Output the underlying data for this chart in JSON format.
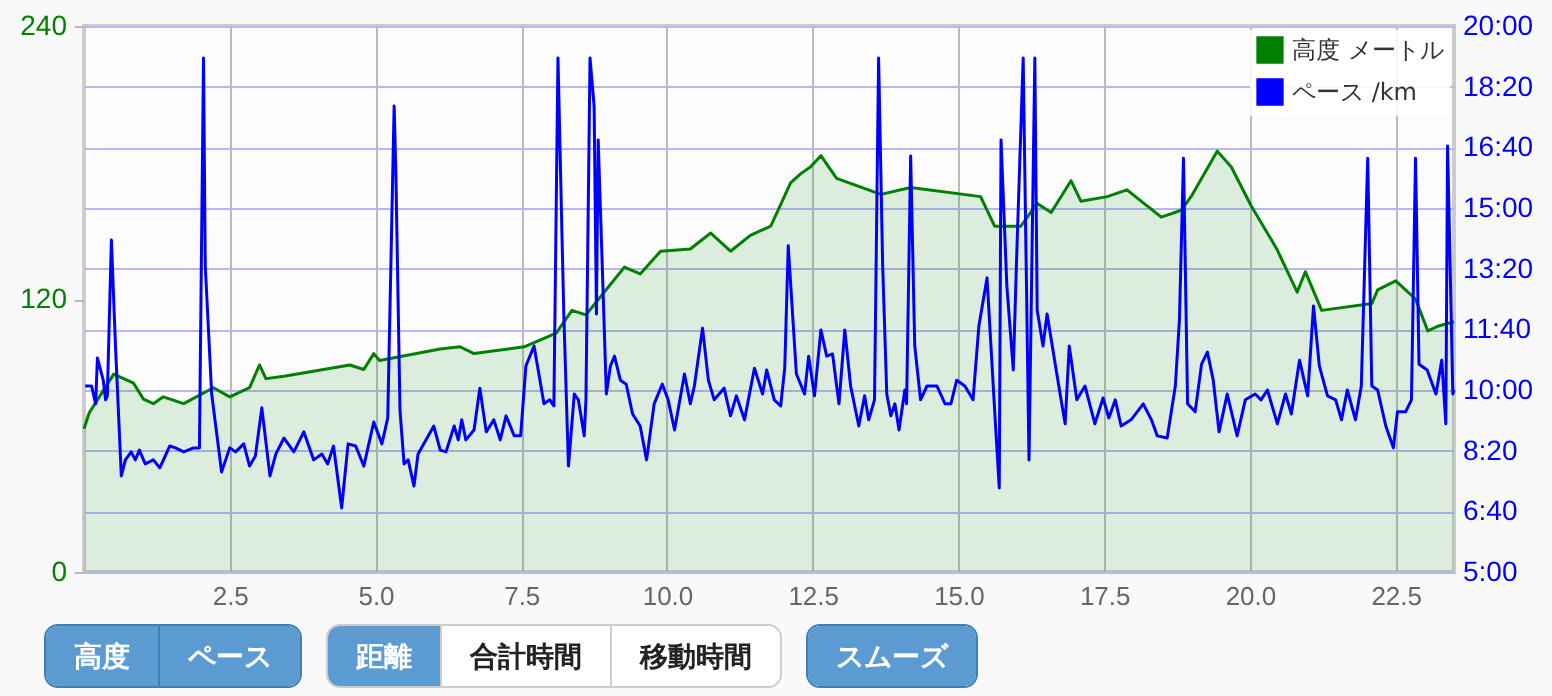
{
  "chart_data": {
    "type": "area",
    "xlim": [
      0,
      23.5
    ],
    "xticks": [
      2.5,
      {
        "value": 5,
        "label": "5.0"
      },
      7.5,
      {
        "value": 10,
        "label": "10.0"
      },
      12.5,
      {
        "value": 15,
        "label": "15.0"
      },
      17.5,
      {
        "value": 20,
        "label": "20.0"
      },
      22.5
    ],
    "ylim": [
      0,
      240
    ],
    "yticks": [
      0,
      120,
      240
    ],
    "y2lim": [
      5,
      20
    ],
    "y2ticks": [
      {
        "value": 5,
        "label": "5:00"
      },
      {
        "value": 6.667,
        "label": "6:40"
      },
      {
        "value": 8.333,
        "label": "8:20"
      },
      {
        "value": 10,
        "label": "10:00"
      },
      {
        "value": 11.667,
        "label": "11:40"
      },
      {
        "value": 13.333,
        "label": "13:20"
      },
      {
        "value": 15,
        "label": "15:00"
      },
      {
        "value": 16.667,
        "label": "16:40"
      },
      {
        "value": 18.333,
        "label": "18:20"
      },
      {
        "value": 20,
        "label": "20:00"
      }
    ],
    "grid": true,
    "legend": "top right",
    "annotations": [
      "高度",
      "ペース",
      "距離",
      "合計時間",
      "移動時間",
      "スムーズ"
    ],
    "series": [
      {
        "name": "高度 メートル",
        "color": "#008000",
        "x": [
          0,
          0.09,
          0.51,
          0.85,
          1.02,
          1.19,
          1.36,
          1.71,
          2.22,
          2.5,
          2.84,
          3.01,
          3.12,
          3.43,
          4.56,
          4.8,
          4.97,
          5.07,
          6.11,
          6.45,
          6.69,
          7.55,
          8.1,
          8.37,
          8.61,
          8.86,
          9.27,
          9.54,
          9.89,
          10.4,
          10.75,
          11.09,
          11.43,
          11.78,
          12.12,
          12.29,
          12.46,
          12.64,
          12.91,
          13.67,
          14.18,
          15.38,
          15.62,
          16.07,
          16.35,
          16.59,
          16.93,
          17.1,
          17.55,
          17.89,
          18.48,
          18.82,
          18.99,
          19.44,
          19.68,
          20.02,
          20.46,
          20.81,
          20.95,
          21.23,
          22.09,
          22.19,
          22.5,
          22.84,
          23.05,
          23.22,
          23.5
        ],
        "values": [
          63,
          70,
          87,
          83,
          76,
          74,
          77,
          74,
          81,
          77,
          81,
          91,
          85,
          86,
          91,
          89,
          96,
          93,
          98,
          99,
          96,
          99,
          105,
          115,
          113,
          121,
          134,
          131,
          141,
          142,
          149,
          141,
          148,
          152,
          171,
          175,
          178,
          183,
          173,
          166,
          169,
          165,
          152,
          152,
          162,
          158,
          172,
          163,
          165,
          168,
          156,
          159,
          165,
          185,
          178,
          161,
          142,
          123,
          132,
          115,
          118,
          124,
          128,
          120,
          106,
          108,
          110
        ]
      },
      {
        "name": "ペース /km",
        "type": "line",
        "axis": "y2",
        "color": "#0000ff",
        "x": [
          0.02,
          0.13,
          0.2,
          0.23,
          0.33,
          0.37,
          0.4,
          0.47,
          0.54,
          0.64,
          0.71,
          0.81,
          0.88,
          0.95,
          1.05,
          1.19,
          1.3,
          1.47,
          1.57,
          1.71,
          1.88,
          1.98,
          2.05,
          2.08,
          2.19,
          2.36,
          2.5,
          2.6,
          2.74,
          2.84,
          2.94,
          3.05,
          3.19,
          3.29,
          3.43,
          3.6,
          3.77,
          3.94,
          4.08,
          4.18,
          4.28,
          4.42,
          4.53,
          4.66,
          4.8,
          4.97,
          5.11,
          5.21,
          5.32,
          5.35,
          5.42,
          5.49,
          5.56,
          5.66,
          5.73,
          6,
          6.11,
          6.21,
          6.35,
          6.42,
          6.48,
          6.55,
          6.69,
          6.79,
          6.9,
          7.03,
          7.14,
          7.24,
          7.38,
          7.49,
          7.58,
          7.72,
          7.89,
          7.99,
          8.06,
          8.13,
          8.23,
          8.31,
          8.41,
          8.48,
          8.58,
          8.61,
          8.68,
          8.75,
          8.79,
          8.82,
          8.89,
          8.96,
          9.03,
          9.1,
          9.2,
          9.3,
          9.41,
          9.54,
          9.65,
          9.78,
          9.92,
          10.02,
          10.13,
          10.3,
          10.4,
          10.47,
          10.61,
          10.71,
          10.81,
          10.98,
          11.09,
          11.19,
          11.33,
          11.5,
          11.64,
          11.71,
          11.84,
          11.95,
          12.02,
          12.08,
          12.22,
          12.36,
          12.43,
          12.53,
          12.64,
          12.74,
          12.84,
          12.95,
          13.05,
          13.15,
          13.29,
          13.39,
          13.46,
          13.56,
          13.63,
          13.7,
          13.77,
          13.84,
          13.91,
          13.98,
          14.08,
          14.11,
          14.18,
          14.25,
          14.35,
          14.46,
          14.63,
          14.77,
          14.87,
          14.97,
          15.11,
          15.25,
          15.35,
          15.49,
          15.63,
          15.7,
          15.73,
          15.83,
          15.94,
          16,
          16.11,
          16.21,
          16.31,
          16.35,
          16.45,
          16.52,
          16.66,
          16.76,
          16.83,
          16.9,
          17.03,
          17.17,
          17.34,
          17.48,
          17.58,
          17.69,
          17.79,
          17.96,
          18.17,
          18.31,
          18.41,
          18.58,
          18.72,
          18.79,
          18.86,
          18.93,
          19.06,
          19.17,
          19.27,
          19.37,
          19.47,
          19.61,
          19.78,
          19.92,
          20.09,
          20.19,
          20.3,
          20.47,
          20.61,
          20.71,
          20.85,
          20.99,
          21.09,
          21.19,
          21.33,
          21.47,
          21.57,
          21.67,
          21.81,
          21.91,
          22.02,
          22.09,
          22.19,
          22.33,
          22.46,
          22.53,
          22.67,
          22.77,
          22.84,
          22.9,
          23.04,
          23.19,
          23.29,
          23.36,
          23.39,
          23.48,
          23.5
        ],
        "values": [
          10.11,
          10.11,
          9.62,
          10.88,
          10.27,
          9.73,
          9.84,
          14.12,
          11.21,
          7.64,
          8.08,
          8.3,
          8.08,
          8.35,
          7.97,
          8.08,
          7.86,
          8.46,
          8.41,
          8.3,
          8.41,
          8.41,
          19.12,
          13.41,
          9.89,
          7.75,
          8.41,
          8.3,
          8.52,
          7.91,
          8.19,
          9.51,
          7.64,
          8.24,
          8.68,
          8.3,
          8.85,
          8.08,
          8.24,
          7.97,
          8.46,
          6.76,
          8.52,
          8.46,
          7.91,
          9.12,
          8.52,
          9.23,
          17.8,
          15.93,
          9.45,
          7.97,
          8.08,
          7.36,
          8.24,
          9.01,
          8.35,
          8.3,
          9.01,
          8.63,
          9.18,
          8.63,
          8.9,
          10.05,
          8.85,
          9.18,
          8.63,
          9.29,
          8.74,
          8.74,
          10.66,
          11.21,
          9.62,
          9.73,
          9.56,
          19.12,
          12.09,
          7.91,
          9.89,
          9.73,
          8.74,
          9.73,
          19.12,
          17.8,
          12.09,
          16.87,
          13.41,
          9.89,
          10.66,
          10.93,
          10.27,
          10.16,
          9.34,
          9.01,
          8.08,
          9.62,
          10.16,
          9.73,
          8.9,
          10.44,
          9.62,
          10.11,
          11.7,
          10.27,
          9.73,
          10.05,
          9.29,
          9.84,
          9.18,
          10.6,
          9.89,
          10.55,
          9.73,
          9.56,
          10.6,
          13.96,
          10.44,
          9.89,
          10.93,
          9.84,
          11.65,
          10.93,
          10.99,
          9.62,
          11.65,
          10.11,
          9.01,
          9.84,
          9.18,
          9.73,
          19.12,
          13.41,
          9.89,
          9.29,
          9.62,
          8.9,
          10,
          9.62,
          16.43,
          11.21,
          9.73,
          10.11,
          10.11,
          9.62,
          9.62,
          10.27,
          10.11,
          9.73,
          11.76,
          13.08,
          9.18,
          7.31,
          16.87,
          12.86,
          10.55,
          13.74,
          19.12,
          8.08,
          19.12,
          12.2,
          11.21,
          12.09,
          10.71,
          9.73,
          9.07,
          11.21,
          9.73,
          10.11,
          9.07,
          9.78,
          9.23,
          9.73,
          9.01,
          9.18,
          9.62,
          9.18,
          8.74,
          8.68,
          10.11,
          11.92,
          16.37,
          9.62,
          9.4,
          10.71,
          11.04,
          10.27,
          8.85,
          9.89,
          8.74,
          9.73,
          9.89,
          9.73,
          10,
          9.07,
          9.89,
          9.34,
          10.82,
          9.84,
          12.31,
          10.66,
          9.84,
          9.73,
          9.18,
          10,
          9.18,
          10.11,
          16.37,
          10.11,
          10,
          9.01,
          8.41,
          9.4,
          9.4,
          9.73,
          16.37,
          10.71,
          10.55,
          9.89,
          10.82,
          9.07,
          16.7,
          9.89,
          10
        ]
      }
    ]
  }
}
